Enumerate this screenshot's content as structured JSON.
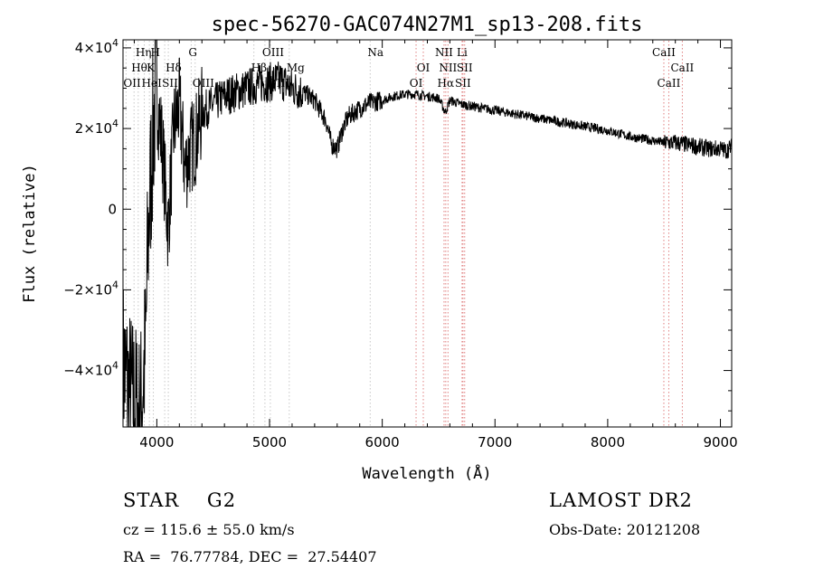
{
  "chart_data": {
    "type": "line",
    "title": "spec-56270-GAC074N27M1_sp13-208.fits",
    "xlabel": "Wavelength (Å)",
    "ylabel": "Flux (relative)",
    "xlim": [
      3700,
      9100
    ],
    "ylim": [
      -54000,
      42000
    ],
    "grid": false,
    "x_ticks": [
      4000,
      5000,
      6000,
      7000,
      8000,
      9000
    ],
    "x_tick_labels": [
      "4000",
      "5000",
      "6000",
      "7000",
      "8000",
      "9000"
    ],
    "y_ticks": [
      {
        "value": 40000,
        "mant": "4×10",
        "exp": "4"
      },
      {
        "value": 20000,
        "mant": "2×10",
        "exp": "4"
      },
      {
        "value": 0,
        "mant": "0",
        "exp": ""
      },
      {
        "value": -20000,
        "mant": "−2×10",
        "exp": "4"
      },
      {
        "value": -40000,
        "mant": "−4×10",
        "exp": "4"
      }
    ],
    "series": [
      {
        "x": [
          3700,
          3750,
          3800,
          3850,
          3880,
          3900,
          3920,
          3950,
          3980,
          4000,
          4050,
          4100,
          4150,
          4200,
          4250,
          4300,
          4350,
          4400,
          4500,
          4600,
          4700,
          4800,
          4900,
          5000,
          5100,
          5200,
          5300,
          5400,
          5500,
          5550,
          5600,
          5650,
          5700,
          5800,
          5900,
          6000,
          6100,
          6200,
          6300,
          6400,
          6500,
          6560,
          6600,
          6700,
          6800,
          6900,
          7000,
          7200,
          7400,
          7600,
          7800,
          8000,
          8200,
          8400,
          8500,
          8600,
          8700,
          8800,
          8900,
          9000,
          9050,
          9100
        ],
        "y": [
          -38000,
          -45000,
          -48000,
          -52000,
          -42000,
          -35000,
          -10000,
          10000,
          25000,
          28000,
          15000,
          -5000,
          20000,
          26000,
          10000,
          15000,
          18000,
          24000,
          26000,
          28000,
          29000,
          30000,
          31000,
          31500,
          32000,
          30000,
          29000,
          27000,
          22000,
          16000,
          15000,
          20000,
          23000,
          25000,
          26500,
          27000,
          28000,
          28500,
          28500,
          28000,
          27500,
          24000,
          27000,
          26000,
          25500,
          25000,
          24500,
          23500,
          22500,
          21500,
          20500,
          19500,
          18000,
          17000,
          16500,
          16500,
          16000,
          15500,
          15000,
          15000,
          14500,
          15500
        ]
      }
    ],
    "lines": [
      {
        "x": 3727,
        "color": "#c8c8c8",
        "label": "OII",
        "row": 3,
        "align": "start"
      },
      {
        "x": 3798,
        "color": "#c8c8c8",
        "label": "Hθ",
        "row": 2,
        "align": "start"
      },
      {
        "x": 3835,
        "color": "#c8c8c8",
        "label": "Hη",
        "row": 1,
        "align": "start"
      },
      {
        "x": 3889,
        "color": "#c8c8c8",
        "label": "HeI",
        "row": 3,
        "align": "start"
      },
      {
        "x": 3934,
        "color": "#c8c8c8",
        "label": "K",
        "row": 2,
        "align": "start"
      },
      {
        "x": 3969,
        "color": "#c8c8c8",
        "label": "H",
        "row": 1,
        "align": "start"
      },
      {
        "x": 4070,
        "color": "#c8c8c8",
        "label": "SII",
        "row": 3,
        "align": "start"
      },
      {
        "x": 4102,
        "color": "#c8c8c8",
        "label": "Hδ",
        "row": 2,
        "align": "start"
      },
      {
        "x": 4305,
        "color": "#c8c8c8",
        "label": "G",
        "row": 1,
        "align": "start"
      },
      {
        "x": 4340,
        "color": "#c8c8c8",
        "label": "OIII",
        "row": 3,
        "align": "start"
      },
      {
        "x": 4861,
        "color": "#c8c8c8",
        "label": "Hβ",
        "row": 2,
        "align": "start"
      },
      {
        "x": 4959,
        "color": "#c8c8c8",
        "label": "OIII",
        "row": 1,
        "align": "start"
      },
      {
        "x": 5007,
        "color": "#c8c8c8",
        "label": "OIII",
        "row": 3,
        "align": "start"
      },
      {
        "x": 5175,
        "color": "#c8c8c8",
        "label": "Mg",
        "row": 2,
        "align": "start"
      },
      {
        "x": 5893,
        "color": "#c8c8c8",
        "label": "Na",
        "row": 1,
        "align": "start"
      },
      {
        "x": 6300,
        "color": "#e08080",
        "label": "OI",
        "row": 3,
        "align": "middle"
      },
      {
        "x": 6364,
        "color": "#e08080",
        "label": "OI",
        "row": 2,
        "align": "middle"
      },
      {
        "x": 6548,
        "color": "#e08080",
        "label": "NII",
        "row": 1,
        "align": "middle"
      },
      {
        "x": 6563,
        "color": "#e08080",
        "label": "Hα",
        "row": 3,
        "align": "middle"
      },
      {
        "x": 6583,
        "color": "#e08080",
        "label": "NII",
        "row": 2,
        "align": "middle"
      },
      {
        "x": 6708,
        "color": "#e08080",
        "label": "Li",
        "row": 1,
        "align": "middle"
      },
      {
        "x": 6716,
        "color": "#e08080",
        "label": "SII",
        "row": 3,
        "align": "middle"
      },
      {
        "x": 6731,
        "color": "#e08080",
        "label": "SII",
        "row": 2,
        "align": "middle"
      },
      {
        "x": 8498,
        "color": "#e08080",
        "label": "CaII",
        "row": 1,
        "align": "middle"
      },
      {
        "x": 8542,
        "color": "#e08080",
        "label": "CaII",
        "row": 3,
        "align": "middle"
      },
      {
        "x": 8662,
        "color": "#e08080",
        "label": "CaII",
        "row": 2,
        "align": "middle"
      }
    ]
  },
  "info": {
    "class_line": "STAR    G2",
    "survey": "LAMOST DR2",
    "cz": "cz = 115.6 ± 55.0 km/s",
    "obs_date": "Obs-Date: 20121208",
    "radec": "RA =  76.77784, DEC =  27.54407"
  }
}
